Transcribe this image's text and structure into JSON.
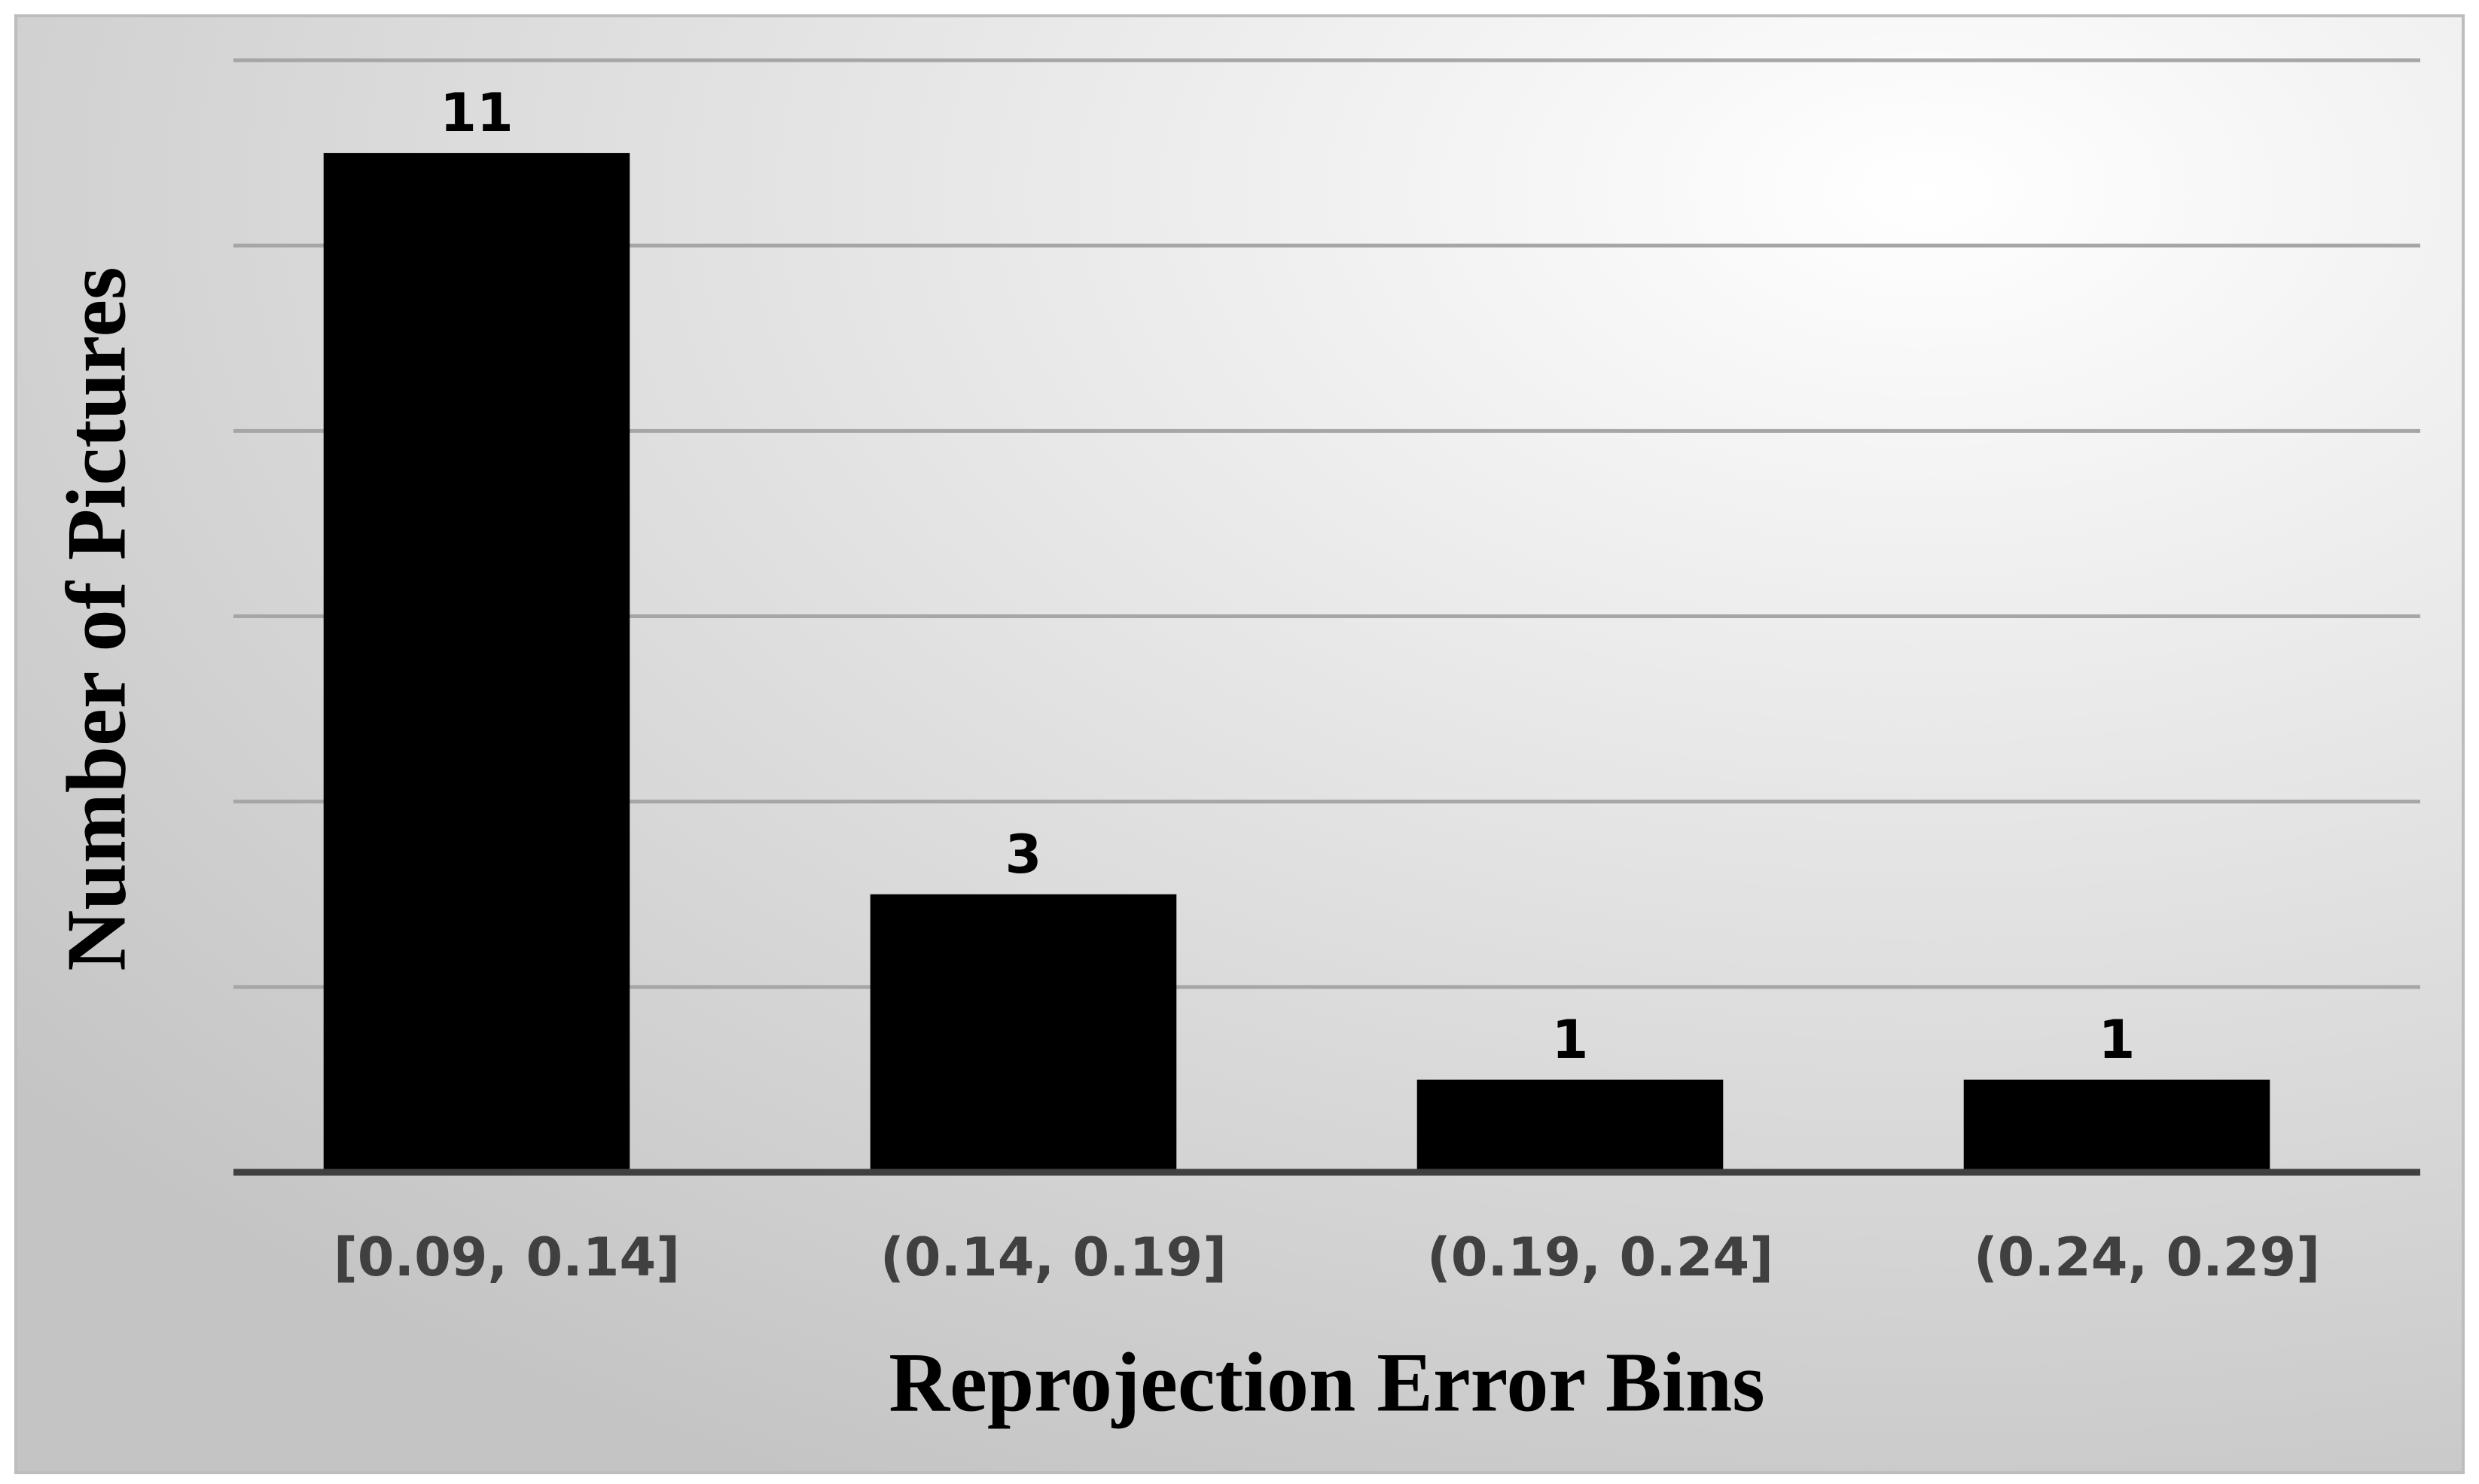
{
  "chart_data": {
    "type": "bar",
    "x_label": "Reprojection Error Bins",
    "y_label": "Number of Pictures",
    "categories": [
      "[0.09, 0.14]",
      "(0.14, 0.19]",
      "(0.19, 0.24]",
      "(0.24, 0.29]"
    ],
    "values": [
      11,
      3,
      1,
      1
    ],
    "color": "#000000",
    "ylim": [
      0,
      12
    ],
    "yticks": [
      0,
      2,
      4,
      6,
      8,
      10,
      12
    ],
    "grid": true
  }
}
